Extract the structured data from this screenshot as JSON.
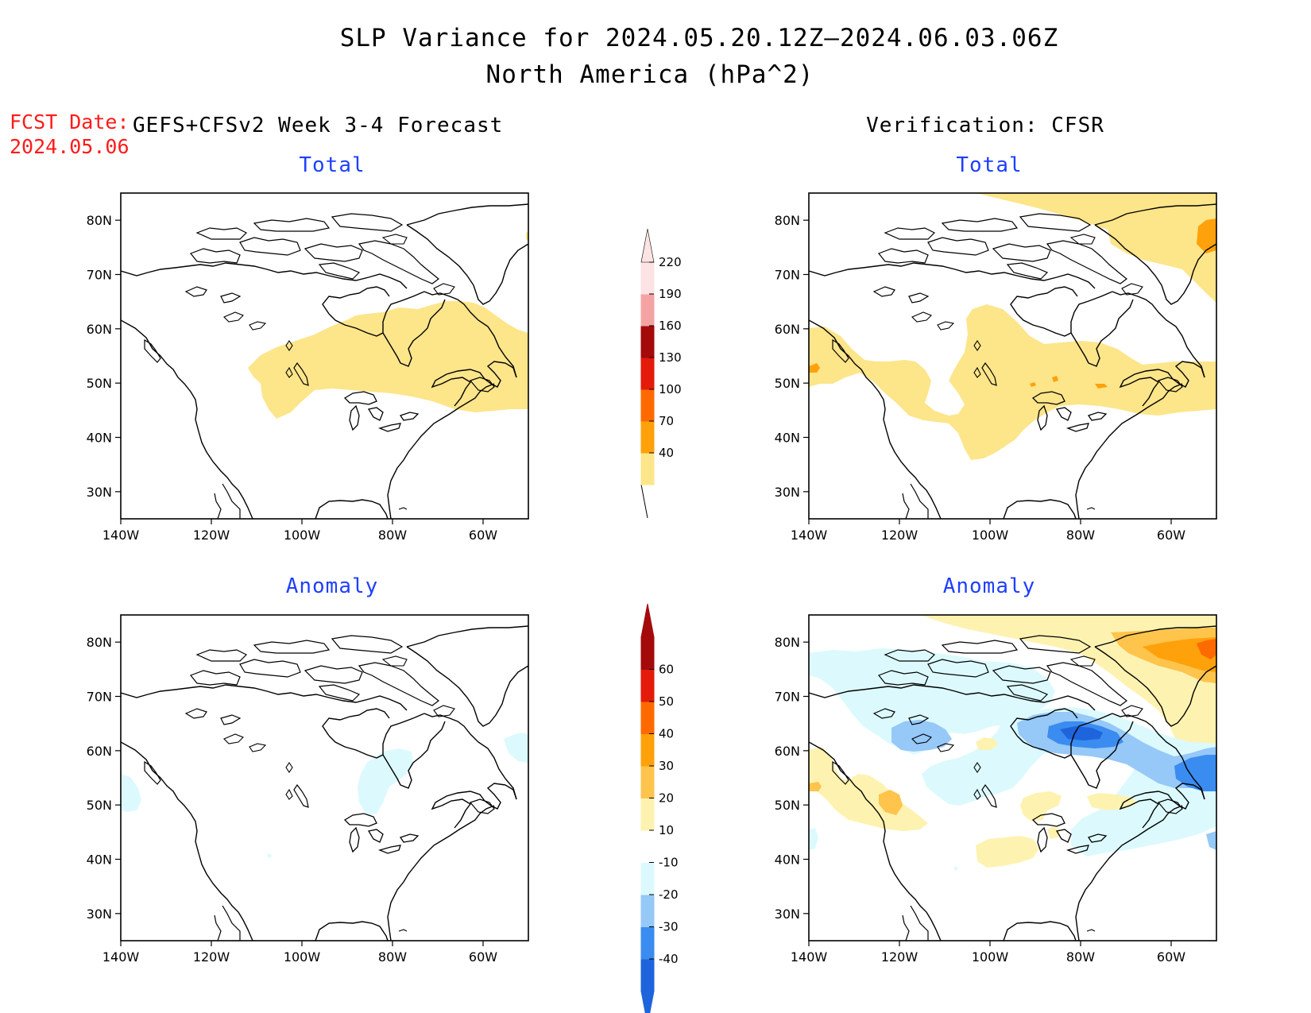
{
  "figure": {
    "title_line1": "SLP Variance for 2024.05.20.12Z—2024.06.03.06Z",
    "title_line2": "North America (hPa^2)",
    "fcst_label": "FCST Date:",
    "fcst_date": "2024.05.06",
    "left_header": "GEFS+CFSv2 Week 3-4 Forecast",
    "right_header": "Verification: CFSR"
  },
  "panels": [
    {
      "id": "fcst-total",
      "title": "Total"
    },
    {
      "id": "verif-total",
      "title": "Total"
    },
    {
      "id": "fcst-anomaly",
      "title": "Anomaly"
    },
    {
      "id": "verif-anomaly",
      "title": "Anomaly"
    }
  ],
  "map_axes": {
    "lon_labels": [
      "140W",
      "120W",
      "100W",
      "80W",
      "60W"
    ],
    "lat_labels": [
      "80N",
      "70N",
      "60N",
      "50N",
      "40N",
      "30N"
    ],
    "lon_range": [
      -140,
      -50
    ],
    "lat_range": [
      25,
      85
    ]
  },
  "colorbars": {
    "total": {
      "levels": [
        "40",
        "70",
        "100",
        "130",
        "160",
        "190",
        "220"
      ],
      "colors": [
        "#fde58a",
        "#ffa10a",
        "#ff6a00",
        "#e41a0a",
        "#a50a0a",
        "#f4a3a3",
        "#fde3e3"
      ]
    },
    "anomaly": {
      "levels": [
        "-40",
        "-30",
        "-20",
        "-10",
        "10",
        "20",
        "30",
        "40",
        "50",
        "60"
      ],
      "colors": [
        "#1e64dc",
        "#3a8cf0",
        "#96c8f8",
        "#dcfafe",
        "#ffffff",
        "#fef2b0",
        "#fec44c",
        "#ffa10a",
        "#ff6a00",
        "#e41a0a",
        "#a50a0a"
      ]
    }
  }
}
